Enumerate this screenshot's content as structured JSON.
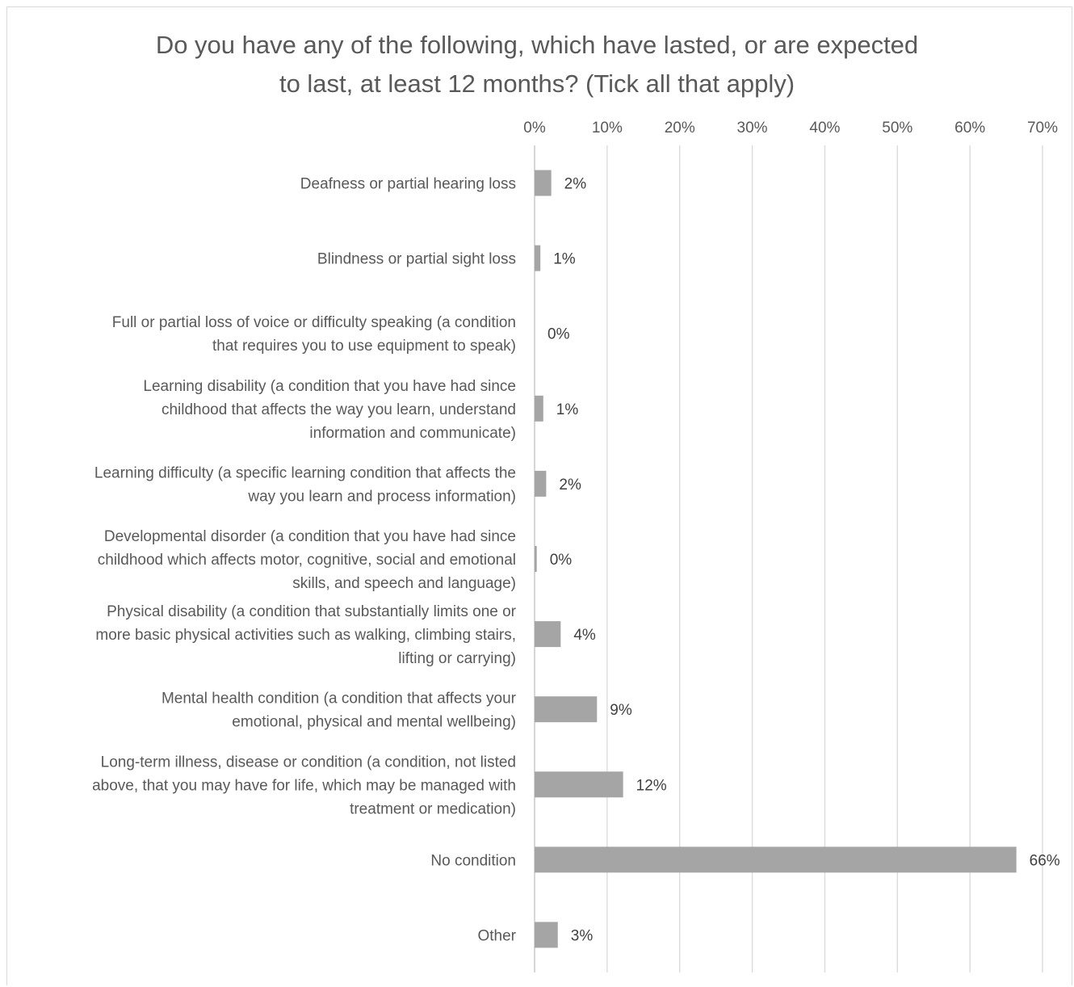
{
  "chart_data": {
    "type": "bar",
    "orientation": "horizontal",
    "title_lines": [
      "Do you have any of the following, which have lasted, or are expected",
      "to last, at least 12 months? (Tick all that apply)"
    ],
    "xlabel": "",
    "ylabel": "",
    "x_axis_position": "top",
    "xlim": [
      0,
      70
    ],
    "x_ticks": [
      0,
      10,
      20,
      30,
      40,
      50,
      60,
      70
    ],
    "x_tick_labels": [
      "0%",
      "10%",
      "20%",
      "30%",
      "40%",
      "50%",
      "60%",
      "70%"
    ],
    "grid": true,
    "legend": "none",
    "bar_color": "#a5a5a5",
    "categories": [
      [
        "Deafness or partial hearing loss"
      ],
      [
        "Blindness or partial sight loss"
      ],
      [
        "Full or partial loss of voice or difficulty speaking (a condition",
        "that requires you to use equipment to speak)"
      ],
      [
        "Learning disability (a condition that you have had since",
        "childhood that affects the way you learn, understand",
        "information and communicate)"
      ],
      [
        "Learning difficulty (a specific learning condition that affects the",
        "way you learn and process information)"
      ],
      [
        "Developmental disorder (a condition that you have had since",
        "childhood which affects motor, cognitive, social and emotional",
        "skills, and speech and language)"
      ],
      [
        "Physical disability (a condition that substantially limits one or",
        "more basic physical activities such as walking, climbing stairs,",
        "lifting or carrying)"
      ],
      [
        "Mental health condition (a condition that affects your",
        "emotional, physical and mental wellbeing)"
      ],
      [
        "Long-term illness, disease or condition (a condition, not listed",
        "above, that you may have for life, which may be managed with",
        "treatment or medication)"
      ],
      [
        "No condition"
      ],
      [
        "Other"
      ]
    ],
    "values": [
      2.3,
      0.8,
      0,
      1.2,
      1.6,
      0.3,
      3.6,
      8.6,
      12.2,
      66.4,
      3.2
    ],
    "data_labels": [
      "2%",
      "1%",
      "0%",
      "1%",
      "2%",
      "0%",
      "4%",
      "9%",
      "12%",
      "66%",
      "3%"
    ]
  }
}
